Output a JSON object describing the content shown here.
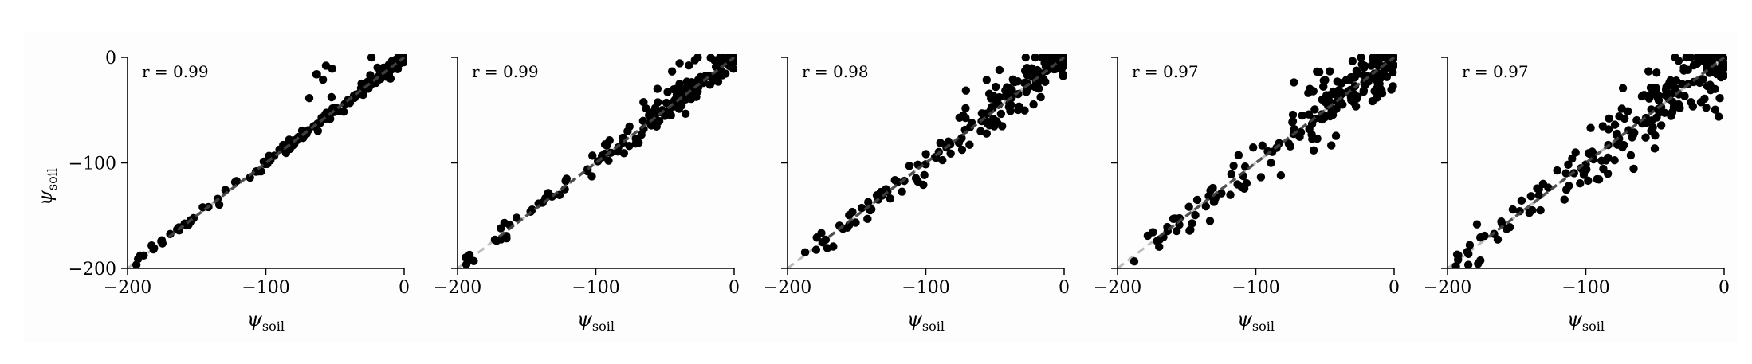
{
  "figure": {
    "panel_count": 5
  },
  "colors": {
    "points": "#000000",
    "identity_line": "#bbbbbb",
    "fit_line": "#444444",
    "background": "#fdfdfd"
  },
  "chart_data": [
    {
      "type": "scatter",
      "xlabel": "ψsoil",
      "ylabel": "ψsoil",
      "xlim": [
        -200,
        0
      ],
      "ylim": [
        -200,
        0
      ],
      "xticks": [
        "−200",
        "−100",
        "0"
      ],
      "yticks": [
        "−200",
        "−100",
        "0"
      ],
      "annotation": "r = 0.99",
      "identity_line": true,
      "seed": 11,
      "n": 150,
      "spread": 3,
      "outliers": 8
    },
    {
      "type": "scatter",
      "xlabel": "ψsoil",
      "ylabel": "",
      "xlim": [
        -200,
        0
      ],
      "ylim": [
        -200,
        0
      ],
      "xticks": [
        "−200",
        "−100",
        "0"
      ],
      "yticks": [
        "",
        "",
        ""
      ],
      "annotation": "r = 0.99",
      "identity_line": true,
      "seed": 23,
      "n": 160,
      "spread": 5,
      "outliers": 9
    },
    {
      "type": "scatter",
      "xlabel": "ψsoil",
      "ylabel": "",
      "xlim": [
        -200,
        0
      ],
      "ylim": [
        -200,
        0
      ],
      "xticks": [
        "−200",
        "−100",
        "0"
      ],
      "yticks": [
        "",
        "",
        ""
      ],
      "annotation": "r = 0.98",
      "identity_line": true,
      "seed": 37,
      "n": 170,
      "spread": 8,
      "outliers": 10
    },
    {
      "type": "scatter",
      "xlabel": "ψsoil",
      "ylabel": "",
      "xlim": [
        -200,
        0
      ],
      "ylim": [
        -200,
        0
      ],
      "xticks": [
        "−200",
        "−100",
        "0"
      ],
      "yticks": [
        "",
        "",
        ""
      ],
      "annotation": "r = 0.97",
      "identity_line": true,
      "seed": 53,
      "n": 190,
      "spread": 11,
      "outliers": 12
    },
    {
      "type": "scatter",
      "xlabel": "ψsoil",
      "ylabel": "",
      "xlim": [
        -200,
        0
      ],
      "ylim": [
        -200,
        0
      ],
      "xticks": [
        "−200",
        "−100",
        "0"
      ],
      "yticks": [
        "",
        "",
        ""
      ],
      "annotation": "r = 0.97",
      "identity_line": true,
      "seed": 71,
      "n": 200,
      "spread": 13,
      "outliers": 12
    }
  ]
}
